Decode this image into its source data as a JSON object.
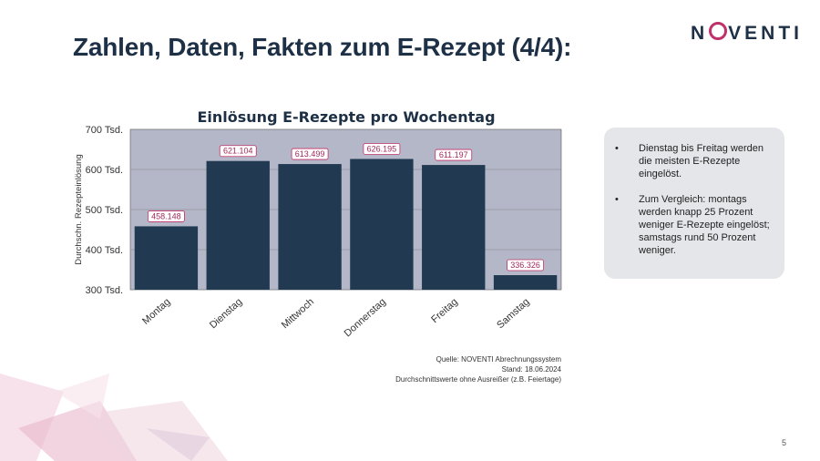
{
  "slide": {
    "title": "Zahlen, Daten, Fakten zum E-Rezept (4/4):",
    "logo_text_before": "N",
    "logo_text_after": "VENTI",
    "page_number": "5"
  },
  "notes": {
    "bullets": [
      "Dienstag bis Freitag werden die meisten E-Rezepte eingelöst.",
      "Zum Vergleich: montags werden knapp 25 Prozent weniger E-Rezepte eingelöst; samstags rund 50 Prozent weniger."
    ]
  },
  "source": {
    "line1": "Quelle: NOVENTI Abrechnungssystem",
    "line2": "Stand: 18.06.2024",
    "line3": "Durchschnittswerte ohne Ausreißer (z.B. Feiertage)"
  },
  "colors": {
    "bar": "#213a52",
    "plot_bg": "#b3b7c7",
    "label_border": "#c0306a",
    "label_text": "#a0285a",
    "brand": "#c0306a"
  },
  "chart_data": {
    "type": "bar",
    "title": "Einlösung E-Rezepte pro Wochentag",
    "xlabel": "",
    "ylabel": "Durchschn. Rezepteinlösung",
    "categories": [
      "Montag",
      "Dienstag",
      "Mittwoch",
      "Donnerstag",
      "Freitag",
      "Samstag"
    ],
    "values": [
      458148,
      621104,
      613499,
      626195,
      611197,
      336326
    ],
    "data_labels": [
      "458.148",
      "621.104",
      "613.499",
      "626.195",
      "611.197",
      "336.326"
    ],
    "ylim": [
      300000,
      700000
    ],
    "yticks": [
      300000,
      400000,
      500000,
      600000,
      700000
    ],
    "ytick_labels": [
      "300 Tsd.",
      "400 Tsd.",
      "500 Tsd.",
      "600 Tsd.",
      "700 Tsd."
    ],
    "grid": true,
    "legend": "none"
  }
}
